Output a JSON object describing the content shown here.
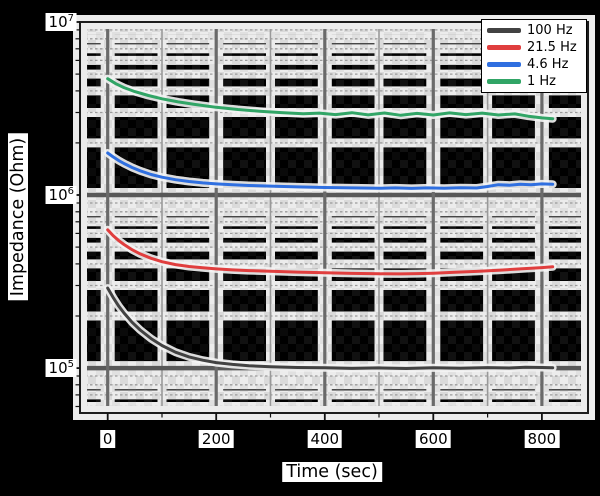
{
  "figure": {
    "background": "#000000"
  },
  "chart_data": {
    "type": "line",
    "title": "",
    "xlabel": "Time (sec)",
    "ylabel": "Impedance (Ohm)",
    "x_scale": "linear",
    "y_scale": "log",
    "xlim": [
      -51,
      885
    ],
    "ylim": [
      55000,
      10000000
    ],
    "grid": "on",
    "legend_position": "top-right",
    "x_major_ticks": [
      0,
      200,
      400,
      600,
      800
    ],
    "x_tick_labels": [
      "0",
      "200",
      "400",
      "600",
      "800"
    ],
    "x_minor_ticks": [
      100,
      300,
      500,
      700
    ],
    "y_major_ticks": [
      10000000,
      1000000,
      100000
    ],
    "y_tick_labels": [
      {
        "mantissa": "10",
        "exponent": "7"
      },
      {
        "mantissa": "10",
        "exponent": "6"
      },
      {
        "mantissa": "10",
        "exponent": "5"
      }
    ],
    "y_minor_ticks": [
      60000,
      70000,
      80000,
      90000,
      200000,
      300000,
      400000,
      500000,
      600000,
      700000,
      800000,
      900000,
      2000000,
      3000000,
      4000000,
      5000000,
      6000000,
      7000000,
      8000000,
      9000000
    ],
    "series": [
      {
        "name": "100 Hz",
        "color": "#424242",
        "points": [
          [
            0,
            290000
          ],
          [
            10,
            256000
          ],
          [
            20,
            229000
          ],
          [
            30,
            208000
          ],
          [
            45,
            184000
          ],
          [
            60,
            166000
          ],
          [
            80,
            148000
          ],
          [
            100,
            135000
          ],
          [
            125,
            123500
          ],
          [
            150,
            116000
          ],
          [
            175,
            111000
          ],
          [
            200,
            107500
          ],
          [
            230,
            105000
          ],
          [
            260,
            103200
          ],
          [
            300,
            101800
          ],
          [
            350,
            100800
          ],
          [
            400,
            100300
          ],
          [
            450,
            99600
          ],
          [
            500,
            100200
          ],
          [
            550,
            99400
          ],
          [
            600,
            100400
          ],
          [
            650,
            99700
          ],
          [
            700,
            100600
          ],
          [
            740,
            100100
          ],
          [
            770,
            101000
          ],
          [
            800,
            100700
          ],
          [
            820,
            100500
          ]
        ]
      },
      {
        "name": "21.5 Hz",
        "color": "#e03e3e",
        "points": [
          [
            0,
            630000
          ],
          [
            10,
            583000
          ],
          [
            20,
            547000
          ],
          [
            30,
            518000
          ],
          [
            45,
            483000
          ],
          [
            60,
            457000
          ],
          [
            80,
            431000
          ],
          [
            100,
            412000
          ],
          [
            125,
            396500
          ],
          [
            150,
            386500
          ],
          [
            175,
            379500
          ],
          [
            200,
            374000
          ],
          [
            230,
            369500
          ],
          [
            260,
            366000
          ],
          [
            300,
            362500
          ],
          [
            350,
            358500
          ],
          [
            400,
            355500
          ],
          [
            450,
            352500
          ],
          [
            500,
            350500
          ],
          [
            540,
            350000
          ],
          [
            570,
            351500
          ],
          [
            600,
            353500
          ],
          [
            640,
            357500
          ],
          [
            680,
            362000
          ],
          [
            720,
            367500
          ],
          [
            760,
            374000
          ],
          [
            800,
            381000
          ],
          [
            820,
            385000
          ]
        ]
      },
      {
        "name": "4.6 Hz",
        "color": "#2f6fe0",
        "points": [
          [
            0,
            1750000
          ],
          [
            10,
            1660000
          ],
          [
            20,
            1585000
          ],
          [
            30,
            1522000
          ],
          [
            45,
            1443000
          ],
          [
            60,
            1380000
          ],
          [
            80,
            1315000
          ],
          [
            100,
            1268000
          ],
          [
            125,
            1226000
          ],
          [
            150,
            1197000
          ],
          [
            175,
            1176000
          ],
          [
            200,
            1160000
          ],
          [
            230,
            1146000
          ],
          [
            260,
            1136000
          ],
          [
            300,
            1126000
          ],
          [
            350,
            1114000
          ],
          [
            400,
            1106000
          ],
          [
            450,
            1099000
          ],
          [
            500,
            1094000
          ],
          [
            530,
            1099000
          ],
          [
            560,
            1092000
          ],
          [
            590,
            1100000
          ],
          [
            620,
            1095000
          ],
          [
            650,
            1103000
          ],
          [
            680,
            1098000
          ],
          [
            700,
            1120000
          ],
          [
            720,
            1148000
          ],
          [
            740,
            1140000
          ],
          [
            760,
            1155000
          ],
          [
            780,
            1148000
          ],
          [
            800,
            1160000
          ],
          [
            820,
            1155000
          ]
        ]
      },
      {
        "name": "1 Hz",
        "color": "#31a566",
        "points": [
          [
            0,
            4700000
          ],
          [
            15,
            4400000
          ],
          [
            30,
            4180000
          ],
          [
            50,
            3960000
          ],
          [
            75,
            3760000
          ],
          [
            100,
            3600000
          ],
          [
            130,
            3455000
          ],
          [
            160,
            3340000
          ],
          [
            200,
            3215000
          ],
          [
            240,
            3120000
          ],
          [
            280,
            3050000
          ],
          [
            320,
            2995000
          ],
          [
            360,
            2950000
          ],
          [
            390,
            2975000
          ],
          [
            420,
            2915000
          ],
          [
            450,
            2990000
          ],
          [
            480,
            2905000
          ],
          [
            510,
            2980000
          ],
          [
            540,
            2890000
          ],
          [
            570,
            2965000
          ],
          [
            600,
            2900000
          ],
          [
            630,
            2985000
          ],
          [
            660,
            2915000
          ],
          [
            690,
            2975000
          ],
          [
            720,
            2900000
          ],
          [
            750,
            2945000
          ],
          [
            775,
            2855000
          ],
          [
            800,
            2790000
          ],
          [
            820,
            2760000
          ]
        ]
      }
    ]
  }
}
